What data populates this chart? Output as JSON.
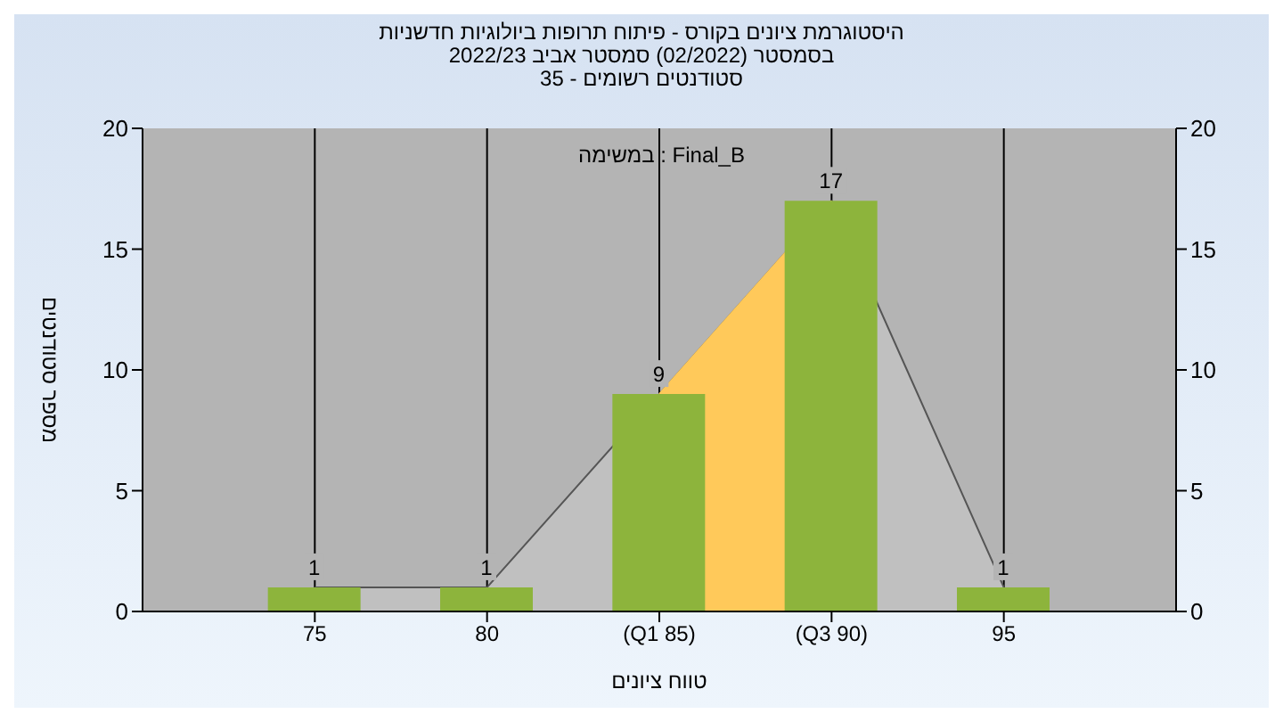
{
  "chart_data": {
    "type": "bar",
    "title": "היסטוגרמת ציונים בקורס - פיתוח תרופות ביולוגיות חדשניות",
    "subtitle": "בסמסטר (02/2022) סמסטר אביב 2022/23\nסטודנטים רשומים - 35",
    "xlabel": "טווח ציונים",
    "ylabel": "מספר סטודנטים",
    "annotations": [
      "במשימה : Final_B"
    ],
    "categories": [
      "75",
      "80",
      "(Q1 85)",
      "(Q3 90)",
      "95"
    ],
    "series": [
      {
        "type": "area",
        "color": "#c0c0c0",
        "values": [
          1,
          1,
          9,
          17,
          1
        ]
      },
      {
        "type": "area",
        "color": "#ffc95a",
        "values": [
          null,
          null,
          9,
          17,
          null
        ]
      },
      {
        "color": "#8db43c",
        "values": [
          1,
          1,
          9,
          17,
          1
        ],
        "value_labels": [
          "1",
          "1",
          "9",
          "17",
          "1"
        ]
      }
    ],
    "ylim": [
      0,
      20
    ],
    "yticks": [
      0,
      5,
      10,
      15,
      20
    ],
    "y2lim": [
      0,
      20
    ],
    "y2ticks": [
      0,
      5,
      10,
      15,
      20
    ],
    "grid": "x",
    "legend": false
  }
}
